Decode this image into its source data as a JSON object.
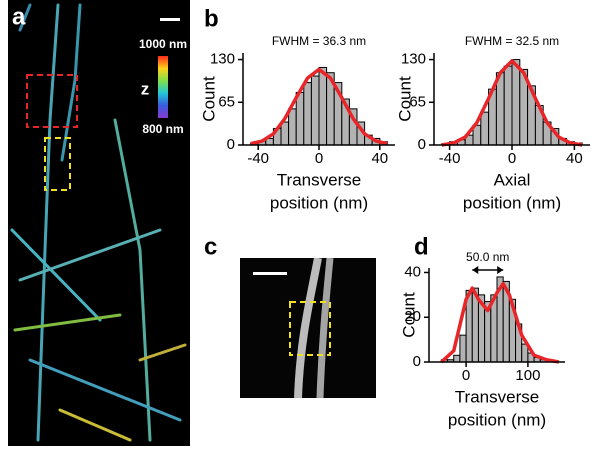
{
  "panel_labels": [
    "a",
    "b",
    "c",
    "d"
  ],
  "colorbar": {
    "top_label": "1000 nm",
    "axis_label": "z",
    "bottom_label": "800 nm"
  },
  "chart_data": [
    {
      "type": "histogram",
      "annotation": "FWHM  = 36.3 nm",
      "ylabel": "Count",
      "xlabel": [
        "Transverse",
        "position (nm)"
      ],
      "bins": [
        -45,
        -40,
        -35,
        -30,
        -25,
        -20,
        -15,
        -10,
        -5,
        0,
        5,
        10,
        15,
        20,
        25,
        30,
        35,
        40,
        45
      ],
      "counts": [
        2,
        6,
        10,
        25,
        35,
        55,
        80,
        95,
        105,
        118,
        110,
        95,
        70,
        55,
        35,
        15,
        10,
        5
      ],
      "color": "#b3b3b3",
      "fit": {
        "color": "#e8262a",
        "x": [
          -45,
          -37.5,
          -30,
          -22.5,
          -15,
          -7.5,
          0,
          7.5,
          15,
          22.5,
          30,
          37.5,
          45
        ],
        "values": [
          2,
          6,
          17,
          40,
          72,
          102,
          115,
          102,
          72,
          40,
          17,
          6,
          2
        ]
      },
      "xlim": [
        -50,
        50
      ],
      "ylim": [
        0,
        140
      ],
      "xticks": [
        -40,
        0,
        40
      ],
      "yticks": [
        0,
        65,
        130
      ]
    },
    {
      "type": "histogram",
      "annotation": "FWHM = 32.5 nm",
      "ylabel": "Count",
      "xlabel": [
        "Axial",
        "position (nm)"
      ],
      "bins": [
        -45,
        -40,
        -35,
        -30,
        -25,
        -20,
        -15,
        -10,
        -5,
        0,
        5,
        10,
        15,
        20,
        25,
        30,
        35,
        40,
        45
      ],
      "counts": [
        2,
        5,
        8,
        15,
        30,
        50,
        85,
        110,
        120,
        130,
        115,
        90,
        60,
        35,
        25,
        10,
        5,
        3
      ],
      "color": "#b3b3b3",
      "fit": {
        "color": "#e8262a",
        "x": [
          -45,
          -37.5,
          -30,
          -22.5,
          -15,
          -7.5,
          0,
          7.5,
          15,
          22.5,
          30,
          37.5,
          45
        ],
        "values": [
          0,
          3,
          12,
          34,
          71,
          110,
          128,
          110,
          71,
          34,
          12,
          3,
          0
        ]
      },
      "xlim": [
        -50,
        50
      ],
      "ylim": [
        0,
        140
      ],
      "xticks": [
        -40,
        0,
        40
      ],
      "yticks": [
        0,
        65,
        130
      ]
    },
    {
      "type": "histogram",
      "ylabel": "Count",
      "xlabel": [
        "Transverse",
        "position (nm)"
      ],
      "bins": [
        -40,
        -30,
        -20,
        -10,
        0,
        10,
        20,
        30,
        40,
        50,
        60,
        70,
        80,
        90,
        100,
        110,
        120,
        130,
        140,
        150
      ],
      "counts": [
        1,
        1,
        3,
        12,
        32,
        33,
        30,
        27,
        30,
        38,
        36,
        28,
        17,
        8,
        4,
        2,
        1,
        1,
        0
      ],
      "color": "#b3b3b3",
      "fit": {
        "color": "#e8262a",
        "x": [
          -40,
          -20,
          0,
          10,
          20,
          35,
          50,
          60,
          70,
          90,
          110,
          130,
          150
        ],
        "values": [
          0,
          5,
          28,
          33,
          28,
          23,
          31,
          35,
          30,
          12,
          3,
          1,
          0
        ]
      },
      "arrow": {
        "label": "50.0 nm",
        "from": 10,
        "to": 60
      },
      "xlim": [
        -60,
        160
      ],
      "ylim": [
        0,
        42
      ],
      "xticks": [
        0,
        100
      ],
      "yticks": [
        0,
        20,
        40
      ]
    }
  ]
}
